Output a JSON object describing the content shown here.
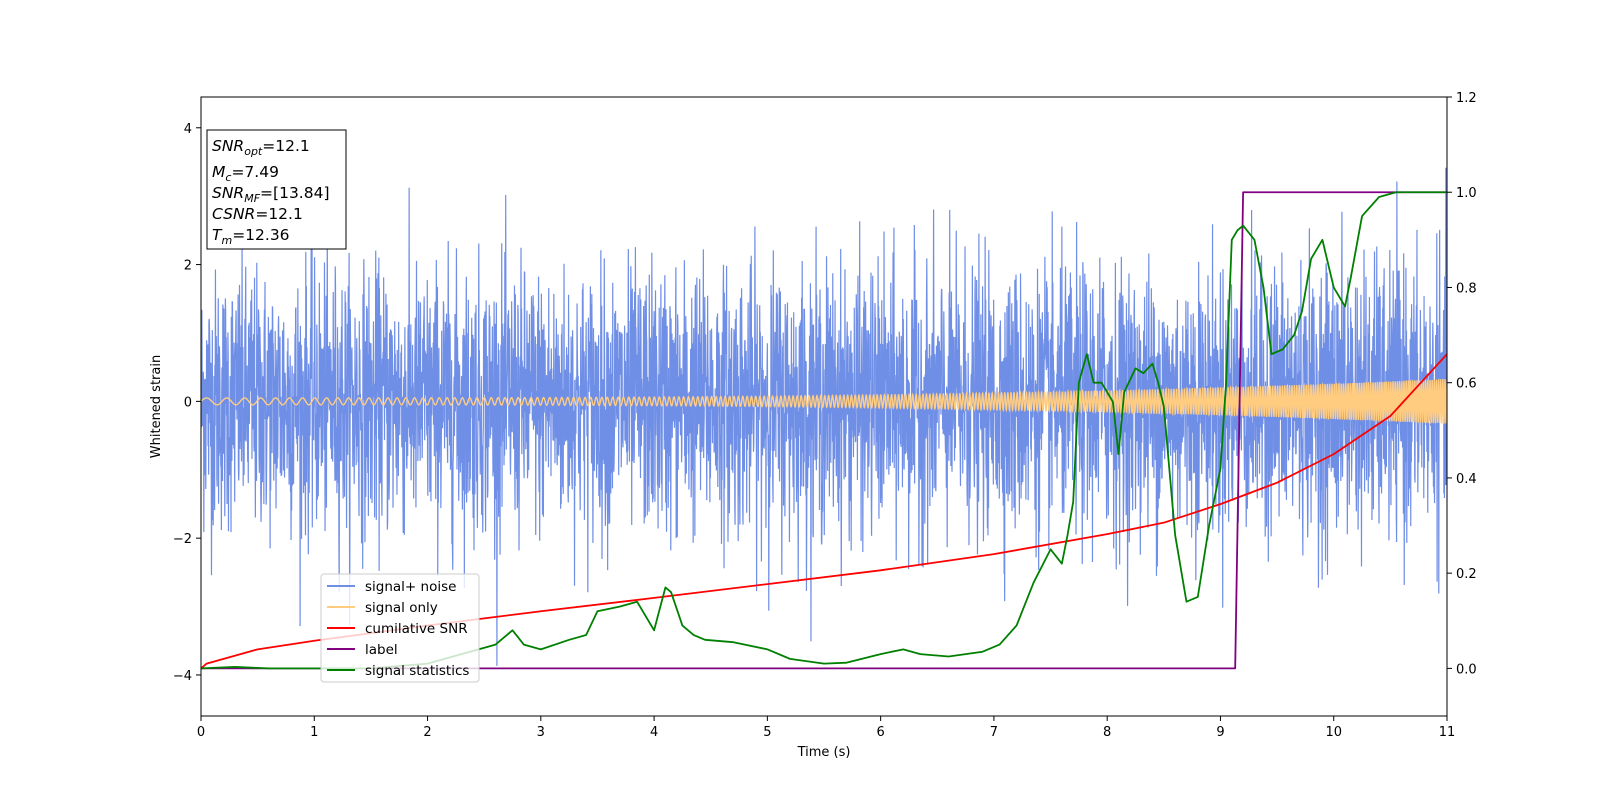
{
  "chart_data": {
    "type": "line",
    "xlabel": "Time (s)",
    "ylabel": "Whitened strain",
    "xlim": [
      0,
      11
    ],
    "ylim_left": [
      -4.6,
      4.45
    ],
    "ylim_right": [
      -0.1,
      1.2
    ],
    "x_ticks": [
      "0",
      "1",
      "2",
      "3",
      "4",
      "5",
      "6",
      "7",
      "8",
      "9",
      "10",
      "11"
    ],
    "y_left_ticks": [
      "−4",
      "−2",
      "0",
      "2",
      "4"
    ],
    "y_right_ticks": [
      "0.0",
      "0.2",
      "0.4",
      "0.6",
      "0.8",
      "1.0",
      "1.2"
    ],
    "info_box": {
      "snr_opt": {
        "base": "SNR",
        "sub": "opt",
        "value": "=12.1"
      },
      "mc": {
        "base": "M",
        "sub": "c",
        "value": "=7.49"
      },
      "snr_mf": {
        "base": "SNR",
        "sub": "MF",
        "value": "=[13.84]"
      },
      "csnr": {
        "base": "CSNR",
        "value": "=12.1"
      },
      "tm": {
        "base": "T",
        "sub": "m",
        "value": "=12.36"
      }
    },
    "series": [
      {
        "name": "signal+ noise",
        "axis": "left",
        "color": "#6f8ee6",
        "description_type": "noise",
        "std": 0.95
      },
      {
        "name": "signal only",
        "axis": "left",
        "color": "#ffcc80",
        "description_type": "chirp",
        "amplitude_start": 0.05,
        "amplitude_end": 0.33
      },
      {
        "name": "cumilative SNR",
        "axis": "right",
        "color": "#ff0000",
        "x": [
          0,
          0.05,
          0.5,
          1,
          2,
          3,
          4,
          5,
          6,
          7,
          8,
          8.5,
          9,
          9.5,
          10,
          10.5,
          11
        ],
        "y": [
          0.0,
          0.01,
          0.04,
          0.058,
          0.09,
          0.12,
          0.148,
          0.177,
          0.206,
          0.24,
          0.282,
          0.306,
          0.345,
          0.39,
          0.45,
          0.53,
          0.66
        ]
      },
      {
        "name": "label",
        "axis": "right",
        "color": "#800080",
        "x": [
          0,
          9.13,
          9.2,
          11
        ],
        "y": [
          0,
          0,
          1,
          1
        ]
      },
      {
        "name": "signal statistics",
        "axis": "right",
        "color": "#008000",
        "x": [
          0,
          0.3,
          0.6,
          1.5,
          2,
          2.3,
          2.6,
          2.75,
          2.85,
          3.0,
          3.25,
          3.4,
          3.5,
          3.7,
          3.85,
          4.0,
          4.1,
          4.15,
          4.25,
          4.35,
          4.45,
          4.7,
          5.0,
          5.2,
          5.5,
          5.7,
          6.0,
          6.2,
          6.35,
          6.6,
          6.9,
          7.05,
          7.2,
          7.35,
          7.5,
          7.6,
          7.65,
          7.7,
          7.75,
          7.82,
          7.88,
          7.95,
          8.05,
          8.1,
          8.15,
          8.25,
          8.32,
          8.4,
          8.45,
          8.5,
          8.6,
          8.7,
          8.8,
          8.9,
          9.0,
          9.05,
          9.1,
          9.15,
          9.2,
          9.3,
          9.38,
          9.45,
          9.55,
          9.65,
          9.72,
          9.8,
          9.9,
          10.0,
          10.1,
          10.15,
          10.25,
          10.4,
          10.55,
          10.7,
          10.85,
          11.0
        ],
        "y": [
          0.0,
          0.003,
          0.0,
          0.0,
          0.01,
          0.03,
          0.05,
          0.08,
          0.05,
          0.04,
          0.06,
          0.07,
          0.12,
          0.13,
          0.14,
          0.08,
          0.17,
          0.16,
          0.09,
          0.07,
          0.06,
          0.055,
          0.04,
          0.02,
          0.01,
          0.012,
          0.03,
          0.04,
          0.03,
          0.025,
          0.035,
          0.05,
          0.09,
          0.18,
          0.25,
          0.22,
          0.28,
          0.35,
          0.6,
          0.66,
          0.6,
          0.6,
          0.56,
          0.45,
          0.58,
          0.63,
          0.62,
          0.64,
          0.6,
          0.55,
          0.28,
          0.14,
          0.15,
          0.3,
          0.42,
          0.6,
          0.9,
          0.92,
          0.93,
          0.9,
          0.8,
          0.66,
          0.67,
          0.7,
          0.75,
          0.86,
          0.9,
          0.8,
          0.76,
          0.82,
          0.95,
          0.99,
          1.0,
          1.0,
          1.0,
          1.0
        ]
      }
    ],
    "legend": {
      "placement": "lower-left",
      "items": [
        "signal+ noise",
        "signal only",
        "cumilative SNR",
        "label",
        "signal statistics"
      ]
    }
  }
}
